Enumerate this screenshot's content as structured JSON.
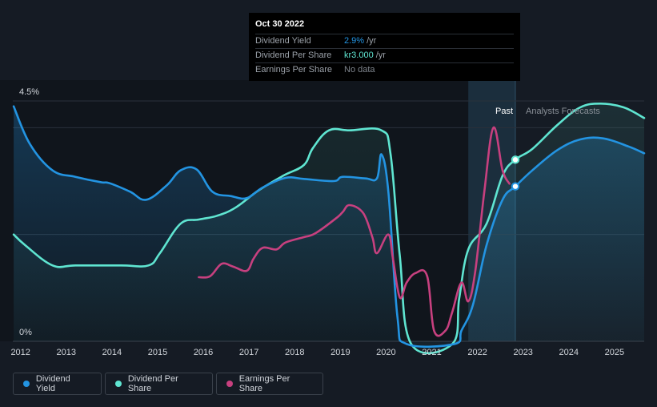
{
  "colors": {
    "dividend_yield": "#2394e2",
    "dividend_per_share": "#5fe5d1",
    "earnings_per_share": "#c7407f",
    "background": "#151b24",
    "past_region": "#1b2e3d"
  },
  "tooltip": {
    "date": "Oct 30 2022",
    "rows": [
      {
        "label": "Dividend Yield",
        "value": "2.9%",
        "suffix": "/yr",
        "color": "#2394e2"
      },
      {
        "label": "Dividend Per Share",
        "value": "kr3.000",
        "suffix": "/yr",
        "color": "#5fe5d1"
      },
      {
        "label": "Earnings Per Share",
        "value": "No data",
        "suffix": "",
        "color": "#7f858d"
      }
    ]
  },
  "regions": {
    "past_label": "Past",
    "forecast_label": "Analysts Forecasts"
  },
  "legend": [
    {
      "label": "Dividend Yield",
      "color": "#2394e2"
    },
    {
      "label": "Dividend Per Share",
      "color": "#5fe5d1"
    },
    {
      "label": "Earnings Per Share",
      "color": "#c7407f"
    }
  ],
  "chart_data": {
    "type": "line",
    "title": "",
    "xlabel": "",
    "ylabel": "",
    "y_tick_labels": [
      "4.5%",
      "0%"
    ],
    "ylim": [
      0,
      4.5
    ],
    "xlim": [
      2011.55,
      2025.65
    ],
    "x_ticks": [
      2012,
      2013,
      2014,
      2015,
      2016,
      2017,
      2018,
      2019,
      2020,
      2021,
      2022,
      2023,
      2024,
      2025
    ],
    "past_start": 2021.8,
    "past_end": 2022.83,
    "series": [
      {
        "name": "Dividend Yield",
        "color": "#2394e2",
        "points": [
          [
            2011.85,
            4.4
          ],
          [
            2012.2,
            3.7
          ],
          [
            2012.7,
            3.2
          ],
          [
            2013.2,
            3.08
          ],
          [
            2013.75,
            2.98
          ],
          [
            2013.95,
            2.96
          ],
          [
            2014.4,
            2.8
          ],
          [
            2014.75,
            2.65
          ],
          [
            2015.2,
            2.92
          ],
          [
            2015.5,
            3.2
          ],
          [
            2015.85,
            3.22
          ],
          [
            2016.2,
            2.8
          ],
          [
            2016.6,
            2.72
          ],
          [
            2016.95,
            2.68
          ],
          [
            2017.3,
            2.88
          ],
          [
            2017.8,
            3.06
          ],
          [
            2018.2,
            3.04
          ],
          [
            2018.85,
            3.0
          ],
          [
            2019.05,
            3.08
          ],
          [
            2019.55,
            3.05
          ],
          [
            2019.8,
            3.05
          ],
          [
            2019.9,
            3.5
          ],
          [
            2020.05,
            2.8
          ],
          [
            2020.25,
            0.45
          ],
          [
            2020.45,
            -0.05
          ],
          [
            2021.5,
            -0.05
          ],
          [
            2021.65,
            0.2
          ],
          [
            2021.9,
            0.68
          ],
          [
            2022.2,
            1.8
          ],
          [
            2022.55,
            2.65
          ],
          [
            2022.83,
            2.9
          ],
          [
            2023.2,
            3.2
          ],
          [
            2023.75,
            3.58
          ],
          [
            2024.25,
            3.78
          ],
          [
            2024.75,
            3.8
          ],
          [
            2025.3,
            3.65
          ],
          [
            2025.65,
            3.52
          ]
        ]
      },
      {
        "name": "Dividend Per Share",
        "color": "#5fe5d1",
        "points": [
          [
            2011.85,
            2.0
          ],
          [
            2012.1,
            1.8
          ],
          [
            2012.7,
            1.42
          ],
          [
            2013.2,
            1.42
          ],
          [
            2014.2,
            1.42
          ],
          [
            2014.8,
            1.42
          ],
          [
            2015.05,
            1.65
          ],
          [
            2015.5,
            2.2
          ],
          [
            2015.9,
            2.28
          ],
          [
            2016.3,
            2.35
          ],
          [
            2016.7,
            2.5
          ],
          [
            2017.2,
            2.82
          ],
          [
            2017.75,
            3.1
          ],
          [
            2018.2,
            3.3
          ],
          [
            2018.4,
            3.62
          ],
          [
            2018.75,
            3.95
          ],
          [
            2019.2,
            3.95
          ],
          [
            2019.9,
            3.95
          ],
          [
            2020.1,
            3.5
          ],
          [
            2020.3,
            1.6
          ],
          [
            2020.55,
            -0.05
          ],
          [
            2021.45,
            -0.05
          ],
          [
            2021.6,
            0.8
          ],
          [
            2021.8,
            1.72
          ],
          [
            2022.2,
            2.2
          ],
          [
            2022.55,
            3.1
          ],
          [
            2022.83,
            3.4
          ],
          [
            2023.2,
            3.6
          ],
          [
            2023.75,
            4.05
          ],
          [
            2024.25,
            4.38
          ],
          [
            2024.7,
            4.45
          ],
          [
            2025.2,
            4.38
          ],
          [
            2025.65,
            4.18
          ]
        ]
      },
      {
        "name": "Earnings Per Share",
        "color": "#c7407f",
        "points": [
          [
            2015.9,
            1.2
          ],
          [
            2016.15,
            1.22
          ],
          [
            2016.4,
            1.45
          ],
          [
            2016.65,
            1.4
          ],
          [
            2016.95,
            1.32
          ],
          [
            2017.1,
            1.55
          ],
          [
            2017.3,
            1.75
          ],
          [
            2017.6,
            1.72
          ],
          [
            2017.8,
            1.85
          ],
          [
            2018.2,
            1.95
          ],
          [
            2018.45,
            2.02
          ],
          [
            2018.9,
            2.3
          ],
          [
            2019.05,
            2.42
          ],
          [
            2019.2,
            2.55
          ],
          [
            2019.5,
            2.4
          ],
          [
            2019.7,
            1.95
          ],
          [
            2019.8,
            1.65
          ],
          [
            2020.05,
            2.0
          ],
          [
            2020.15,
            1.55
          ],
          [
            2020.3,
            0.82
          ],
          [
            2020.45,
            1.1
          ],
          [
            2020.65,
            1.28
          ],
          [
            2020.9,
            1.22
          ],
          [
            2021.05,
            0.2
          ],
          [
            2021.3,
            0.2
          ],
          [
            2021.45,
            0.55
          ],
          [
            2021.65,
            1.1
          ],
          [
            2021.8,
            0.75
          ],
          [
            2021.95,
            1.3
          ],
          [
            2022.15,
            2.8
          ],
          [
            2022.35,
            4.0
          ],
          [
            2022.55,
            3.2
          ],
          [
            2022.7,
            2.95
          ]
        ]
      }
    ],
    "markers": [
      {
        "series": "Dividend Yield",
        "x": 2022.83,
        "y": 2.9
      },
      {
        "series": "Dividend Per Share",
        "x": 2022.83,
        "y": 3.4
      }
    ]
  }
}
